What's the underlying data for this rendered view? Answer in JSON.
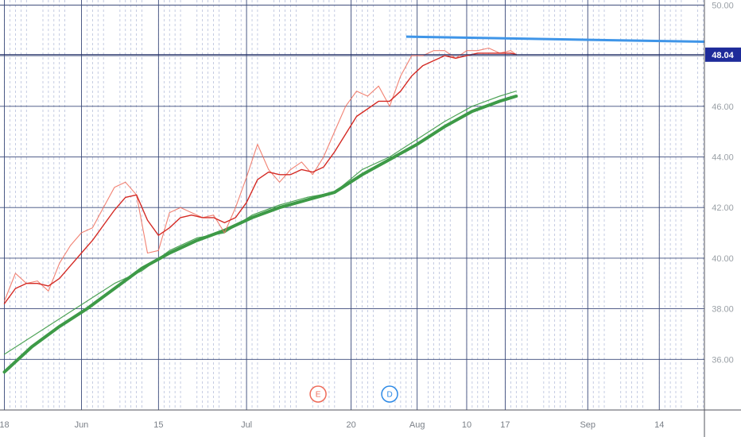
{
  "chart_data": {
    "type": "line",
    "title": "",
    "x_ticks": [
      {
        "label": "18",
        "day": 0
      },
      {
        "label": "Jun",
        "day": 14
      },
      {
        "label": "15",
        "day": 28
      },
      {
        "label": "Jul",
        "day": 44
      },
      {
        "label": "20",
        "day": 63
      },
      {
        "label": "Aug",
        "day": 75
      },
      {
        "label": "10",
        "day": 84
      },
      {
        "label": "17",
        "day": 91
      },
      {
        "label": "Sep",
        "day": 106
      },
      {
        "label": "14",
        "day": 119
      }
    ],
    "y_ticks": [
      "36.00",
      "38.00",
      "40.00",
      "42.00",
      "44.00",
      "46.00",
      "48.00",
      "50.00"
    ],
    "ylim": [
      34.0,
      50.2
    ],
    "xlim": [
      -0.8,
      127.2
    ],
    "grid": true,
    "last_price": 48.04,
    "last_price_label": "48.04",
    "price_series": {
      "name": "",
      "x": [
        0,
        2,
        4,
        6,
        8,
        10,
        12,
        14,
        16,
        18,
        20,
        22,
        24,
        26,
        28,
        30,
        32,
        34,
        36,
        38,
        40,
        42,
        44,
        46,
        48,
        50,
        52,
        54,
        56,
        58,
        60,
        62,
        64,
        66,
        68,
        70,
        72,
        74,
        76,
        78,
        80,
        82,
        84,
        86,
        88,
        90,
        92,
        93
      ],
      "y": [
        38.3,
        39.4,
        39.0,
        39.1,
        38.7,
        39.8,
        40.5,
        41.0,
        41.2,
        42.0,
        42.8,
        43.0,
        42.5,
        40.2,
        40.3,
        41.8,
        42.0,
        41.8,
        41.6,
        41.7,
        41.0,
        42.0,
        43.2,
        44.5,
        43.5,
        43.0,
        43.5,
        43.8,
        43.3,
        44.0,
        45.0,
        46.0,
        46.6,
        46.4,
        46.8,
        46.0,
        47.2,
        48.0,
        48.0,
        48.2,
        48.2,
        47.9,
        48.2,
        48.2,
        48.3,
        48.1,
        48.2,
        48.04
      ]
    },
    "ema_fast": {
      "name": "",
      "x": [
        0,
        2,
        4,
        6,
        8,
        10,
        12,
        14,
        16,
        18,
        20,
        22,
        24,
        26,
        28,
        30,
        32,
        34,
        36,
        38,
        40,
        42,
        44,
        46,
        48,
        50,
        52,
        54,
        56,
        58,
        60,
        62,
        64,
        66,
        68,
        70,
        72,
        74,
        76,
        78,
        80,
        82,
        84,
        86,
        88,
        90,
        92,
        93
      ],
      "y": [
        38.2,
        38.8,
        39.0,
        39.0,
        38.9,
        39.2,
        39.7,
        40.2,
        40.7,
        41.3,
        41.9,
        42.4,
        42.5,
        41.5,
        40.9,
        41.2,
        41.6,
        41.7,
        41.6,
        41.6,
        41.4,
        41.6,
        42.2,
        43.1,
        43.4,
        43.3,
        43.3,
        43.5,
        43.4,
        43.6,
        44.2,
        44.9,
        45.6,
        45.9,
        46.2,
        46.2,
        46.6,
        47.2,
        47.6,
        47.8,
        48.0,
        47.9,
        48.0,
        48.1,
        48.1,
        48.1,
        48.1,
        48.05
      ]
    },
    "ma_slow": {
      "name": "",
      "x": [
        0,
        5,
        10,
        15,
        20,
        25,
        30,
        35,
        40,
        45,
        50,
        55,
        60,
        65,
        70,
        75,
        80,
        85,
        90,
        93
      ],
      "y": [
        35.5,
        36.5,
        37.3,
        38.0,
        38.8,
        39.6,
        40.2,
        40.7,
        41.1,
        41.6,
        42.0,
        42.3,
        42.6,
        43.3,
        43.9,
        44.5,
        45.2,
        45.8,
        46.2,
        46.4
      ]
    },
    "ma_slow_2": {
      "name": "",
      "x": [
        0,
        5,
        10,
        15,
        20,
        25,
        30,
        35,
        40,
        45,
        50,
        55,
        60,
        65,
        70,
        75,
        80,
        85,
        90,
        93
      ],
      "y": [
        36.2,
        36.9,
        37.6,
        38.3,
        39.0,
        39.5,
        40.3,
        40.8,
        41.0,
        41.7,
        42.1,
        42.4,
        42.6,
        43.5,
        44.0,
        44.7,
        45.4,
        46.0,
        46.4,
        46.6
      ]
    },
    "trend_line": {
      "x": [
        73,
        127.2
      ],
      "y": [
        48.75,
        48.55
      ]
    },
    "event_markers": [
      {
        "label": "E",
        "day": 57,
        "color": "#ef6c5a"
      },
      {
        "label": "D",
        "day": 70,
        "color": "#2d8ae6"
      }
    ]
  },
  "colors": {
    "price": "#ef6c5a",
    "ema_fast": "#d42a24",
    "ma_slow": "#3d9a47",
    "trend_line": "#3f95e8",
    "price_line": "#1e2b64",
    "price_label_bg": "#1e2b9a",
    "grid": "#3b4a7a"
  }
}
